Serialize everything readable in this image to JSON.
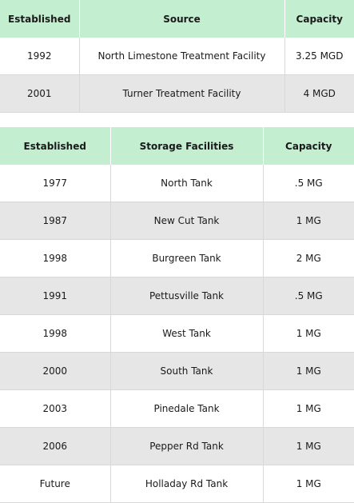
{
  "sources_table": {
    "headers": [
      "Established",
      "Source",
      "Capacity"
    ],
    "rows": [
      [
        "1992",
        "North Limestone Treatment Facility",
        "3.25 MGD"
      ],
      [
        "2001",
        "Turner Treatment Facility",
        "4 MGD"
      ]
    ]
  },
  "storage_table": {
    "headers": [
      "Established",
      "Storage Facilities",
      "Capacity"
    ],
    "rows": [
      [
        "1977",
        "North Tank",
        ".5 MG"
      ],
      [
        "1987",
        "New Cut Tank",
        "1 MG"
      ],
      [
        "1998",
        "Burgreen Tank",
        "2 MG"
      ],
      [
        "1991",
        "Pettusville Tank",
        ".5 MG"
      ],
      [
        "1998",
        "West Tank",
        "1 MG"
      ],
      [
        "2000",
        "South Tank",
        "1 MG"
      ],
      [
        "2003",
        "Pinedale Tank",
        "1 MG"
      ],
      [
        "2006",
        "Pepper Rd Tank",
        "1 MG"
      ],
      [
        "Future",
        "Holladay Rd Tank",
        "1 MG"
      ]
    ]
  },
  "colors": {
    "header_background": "#c3eed0",
    "row_alt_background": "#e6e6e6"
  }
}
